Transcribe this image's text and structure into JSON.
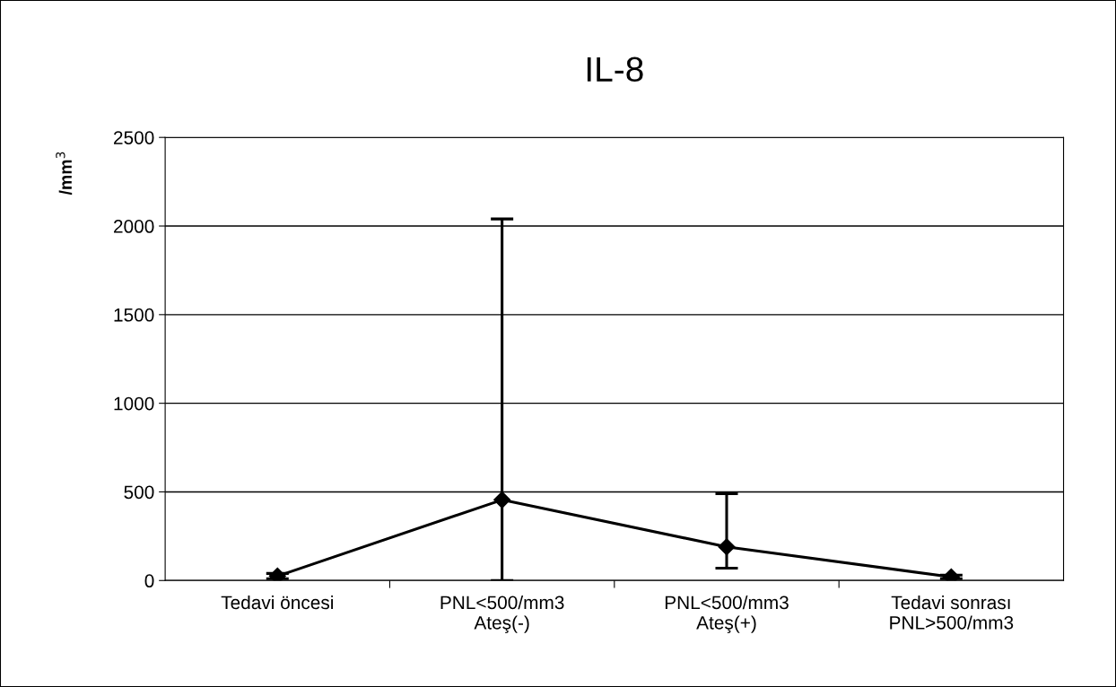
{
  "chart_data": {
    "type": "line",
    "title": "IL-8",
    "ylabel": "/mm$^{3}$",
    "categories": [
      "Tedavi öncesi",
      "PNL<500/mm3\nAteş(-)",
      "PNL<500/mm3\nAteş(+)",
      "Tedavi sonrası\nPNL>500/mm3"
    ],
    "series": [
      {
        "color": "#000000",
        "values": [
          25,
          455,
          190,
          20
        ],
        "errors": [
          15,
          [
            0,
            2040
          ],
          [
            70,
            490
          ],
          10
        ]
      }
    ],
    "ylim": [
      0,
      2500
    ],
    "yticks": [
      0,
      500,
      1000,
      1500,
      2000,
      2500
    ],
    "grid": "y",
    "marker": "diamond",
    "line_style": "solid"
  }
}
